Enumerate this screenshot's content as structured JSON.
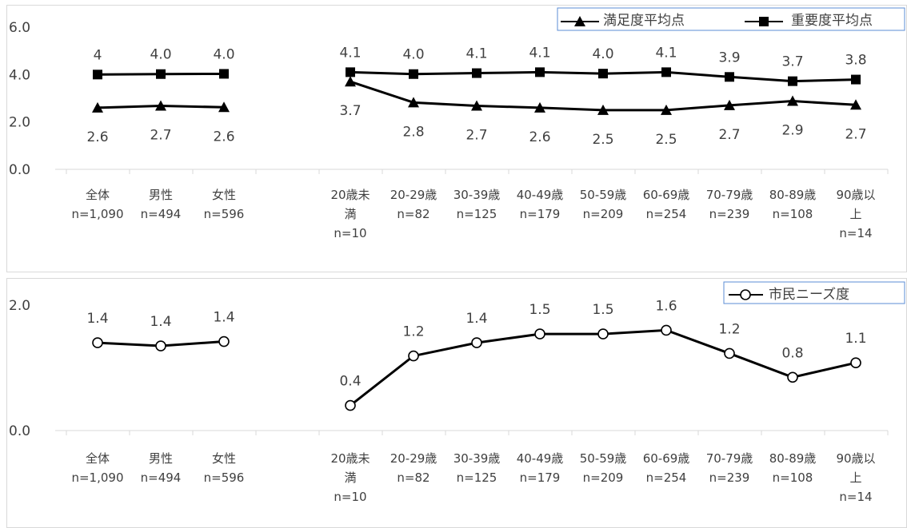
{
  "chart_data": [
    {
      "type": "line",
      "categories": [
        [
          "全体",
          "n=1,090"
        ],
        [
          "男性",
          "n=494"
        ],
        [
          "女性",
          "n=596"
        ],
        [
          "",
          ""
        ],
        [
          "20歳未",
          "満",
          "n=10"
        ],
        [
          "20-29歳",
          "n=82"
        ],
        [
          "30-39歳",
          "n=125"
        ],
        [
          "40-49歳",
          "n=179"
        ],
        [
          "50-59歳",
          "n=209"
        ],
        [
          "60-69歳",
          "n=254"
        ],
        [
          "70-79歳",
          "n=239"
        ],
        [
          "80-89歳",
          "n=108"
        ],
        [
          "90歳以",
          "上",
          "n=14"
        ]
      ],
      "ylim": [
        0,
        6
      ],
      "yticks": [
        "0.0",
        "2.0",
        "4.0",
        "6.0"
      ],
      "legend_position": "top-right",
      "series": [
        {
          "name": "満足度平均点",
          "marker": "triangle",
          "values": [
            2.6,
            2.68,
            2.62,
            null,
            3.7,
            2.82,
            2.68,
            2.6,
            2.5,
            2.5,
            2.7,
            2.88,
            2.72
          ],
          "labels": [
            "2.6",
            "2.7",
            "2.6",
            "",
            "3.7",
            "2.8",
            "2.7",
            "2.6",
            "2.5",
            "2.5",
            "2.7",
            "2.9",
            "2.7"
          ]
        },
        {
          "name": "重要度平均点",
          "marker": "square",
          "values": [
            4.0,
            4.02,
            4.03,
            null,
            4.1,
            4.02,
            4.06,
            4.1,
            4.04,
            4.1,
            3.9,
            3.72,
            3.79
          ],
          "labels": [
            "4",
            "4.0",
            "4.0",
            "",
            "4.1",
            "4.0",
            "4.1",
            "4.1",
            "4.0",
            "4.1",
            "3.9",
            "3.7",
            "3.8"
          ]
        }
      ]
    },
    {
      "type": "line",
      "categories": [
        [
          "全体",
          "n=1,090"
        ],
        [
          "男性",
          "n=494"
        ],
        [
          "女性",
          "n=596"
        ],
        [
          "",
          ""
        ],
        [
          "20歳未",
          "満",
          "n=10"
        ],
        [
          "20-29歳",
          "n=82"
        ],
        [
          "30-39歳",
          "n=125"
        ],
        [
          "40-49歳",
          "n=179"
        ],
        [
          "50-59歳",
          "n=209"
        ],
        [
          "60-69歳",
          "n=254"
        ],
        [
          "70-79歳",
          "n=239"
        ],
        [
          "80-89歳",
          "n=108"
        ],
        [
          "90歳以",
          "上",
          "n=14"
        ]
      ],
      "ylim": [
        0,
        2
      ],
      "yticks": [
        "0.0",
        "2.0"
      ],
      "legend_position": "top-right",
      "series": [
        {
          "name": "市民ニーズ度",
          "marker": "circle",
          "values": [
            1.4,
            1.35,
            1.42,
            null,
            0.4,
            1.19,
            1.4,
            1.54,
            1.54,
            1.6,
            1.23,
            0.85,
            1.08
          ],
          "labels": [
            "1.4",
            "1.4",
            "1.4",
            "",
            "0.4",
            "1.2",
            "1.4",
            "1.5",
            "1.5",
            "1.6",
            "1.2",
            "0.8",
            "1.1"
          ]
        }
      ]
    }
  ]
}
